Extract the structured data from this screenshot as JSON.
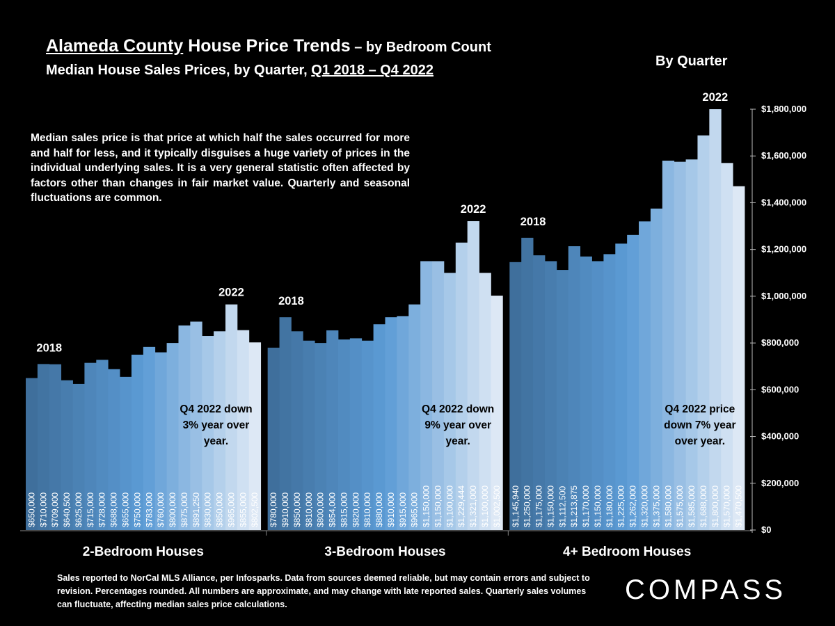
{
  "header": {
    "title_main": "Alameda County",
    "title_rest": " House Price Trends",
    "title_suffix": " – by Bedroom Count",
    "subtitle_pre": "Median House Sales Prices, by Quarter, ",
    "subtitle_range": "Q1 2018 – Q4 2022",
    "by_quarter": "By Quarter"
  },
  "description": "Median sales price is that price at which half the sales occurred for more and half for less, and it typically disguises a huge variety of prices in the individual underlying sales. It is a very general statistic often affected by factors other than changes in fair market value. Quarterly and seasonal fluctuations are common.",
  "footer": "Sales reported to NorCal MLS Alliance, per Infosparks. Data from sources deemed reliable, but may contain errors and subject to revision. Percentages rounded. All numbers are approximate, and may change with late reported sales. Quarterly sales volumes can fluctuate, affecting median sales price calculations.",
  "logo": "COMPASS",
  "chart_data": {
    "type": "bar",
    "ylim": [
      0,
      1800000
    ],
    "yticks": [
      "$0",
      "$200,000",
      "$400,000",
      "$600,000",
      "$800,000",
      "$1,000,000",
      "$1,200,000",
      "$1,400,000",
      "$1,600,000",
      "$1,800,000"
    ],
    "colors": {
      "start": "#3f6f9c",
      "mid": "#5b9bd5",
      "end": "#dde8f5"
    },
    "groups": [
      {
        "name": "2-Bedroom Houses",
        "start_label": "2018",
        "end_label": "2022",
        "annotation": [
          "Q4 2022 down",
          "3% year over",
          "year."
        ],
        "values": [
          650000,
          710000,
          709000,
          640500,
          625000,
          715000,
          728000,
          688000,
          655000,
          750000,
          783000,
          760000,
          800000,
          875000,
          891250,
          830000,
          850000,
          965000,
          855000,
          802500
        ],
        "labels": [
          "$650,000",
          "$710,000",
          "$709,000",
          "$640,500",
          "$625,000",
          "$715,000",
          "$728,000",
          "$688,000",
          "$655,000",
          "$750,000",
          "$783,000",
          "$760,000",
          "$800,000",
          "$875,000",
          "$891,250",
          "$830,000",
          "$850,000",
          "$965,000",
          "$855,000",
          "$802,500"
        ]
      },
      {
        "name": "3-Bedroom Houses",
        "start_label": "2018",
        "end_label": "2022",
        "annotation": [
          "Q4 2022 down",
          "9% year over",
          "year."
        ],
        "values": [
          780000,
          910000,
          850000,
          810000,
          800000,
          854000,
          815000,
          820000,
          810000,
          880000,
          910000,
          915000,
          965000,
          1150000,
          1150000,
          1100000,
          1229444,
          1321000,
          1100000,
          1002500
        ],
        "labels": [
          "$780,000",
          "$910,000",
          "$850,000",
          "$810,000",
          "$800,000",
          "$854,000",
          "$815,000",
          "$820,000",
          "$810,000",
          "$880,000",
          "$910,000",
          "$915,000",
          "$965,000",
          "$1,150,000",
          "$1,150,000",
          "$1,100,000",
          "$1,229,444",
          "$1,321,000",
          "$1,100,000",
          "$1,002,500"
        ]
      },
      {
        "name": "4+ Bedroom Houses",
        "start_label": "2018",
        "end_label": "2022",
        "annotation": [
          "Q4 2022 price",
          "down 7% year",
          "over year."
        ],
        "values": [
          1145940,
          1250000,
          1175000,
          1150000,
          1112500,
          1213875,
          1170000,
          1150000,
          1180000,
          1225000,
          1262000,
          1320000,
          1375000,
          1580000,
          1575000,
          1585000,
          1688000,
          1800000,
          1570000,
          1470500
        ],
        "labels": [
          "$1,145,940",
          "$1,250,000",
          "$1,175,000",
          "$1,150,000",
          "$1,112,500",
          "$1,213,875",
          "$1,170,000",
          "$1,150,000",
          "$1,180,000",
          "$1,225,000",
          "$1,262,000",
          "$1,320,000",
          "$1,375,000",
          "$1,580,000",
          "$1,575,000",
          "$1,585,000",
          "$1,688,000",
          "$1,800,000",
          "$1,570,000",
          "$1,470,500"
        ]
      }
    ]
  }
}
